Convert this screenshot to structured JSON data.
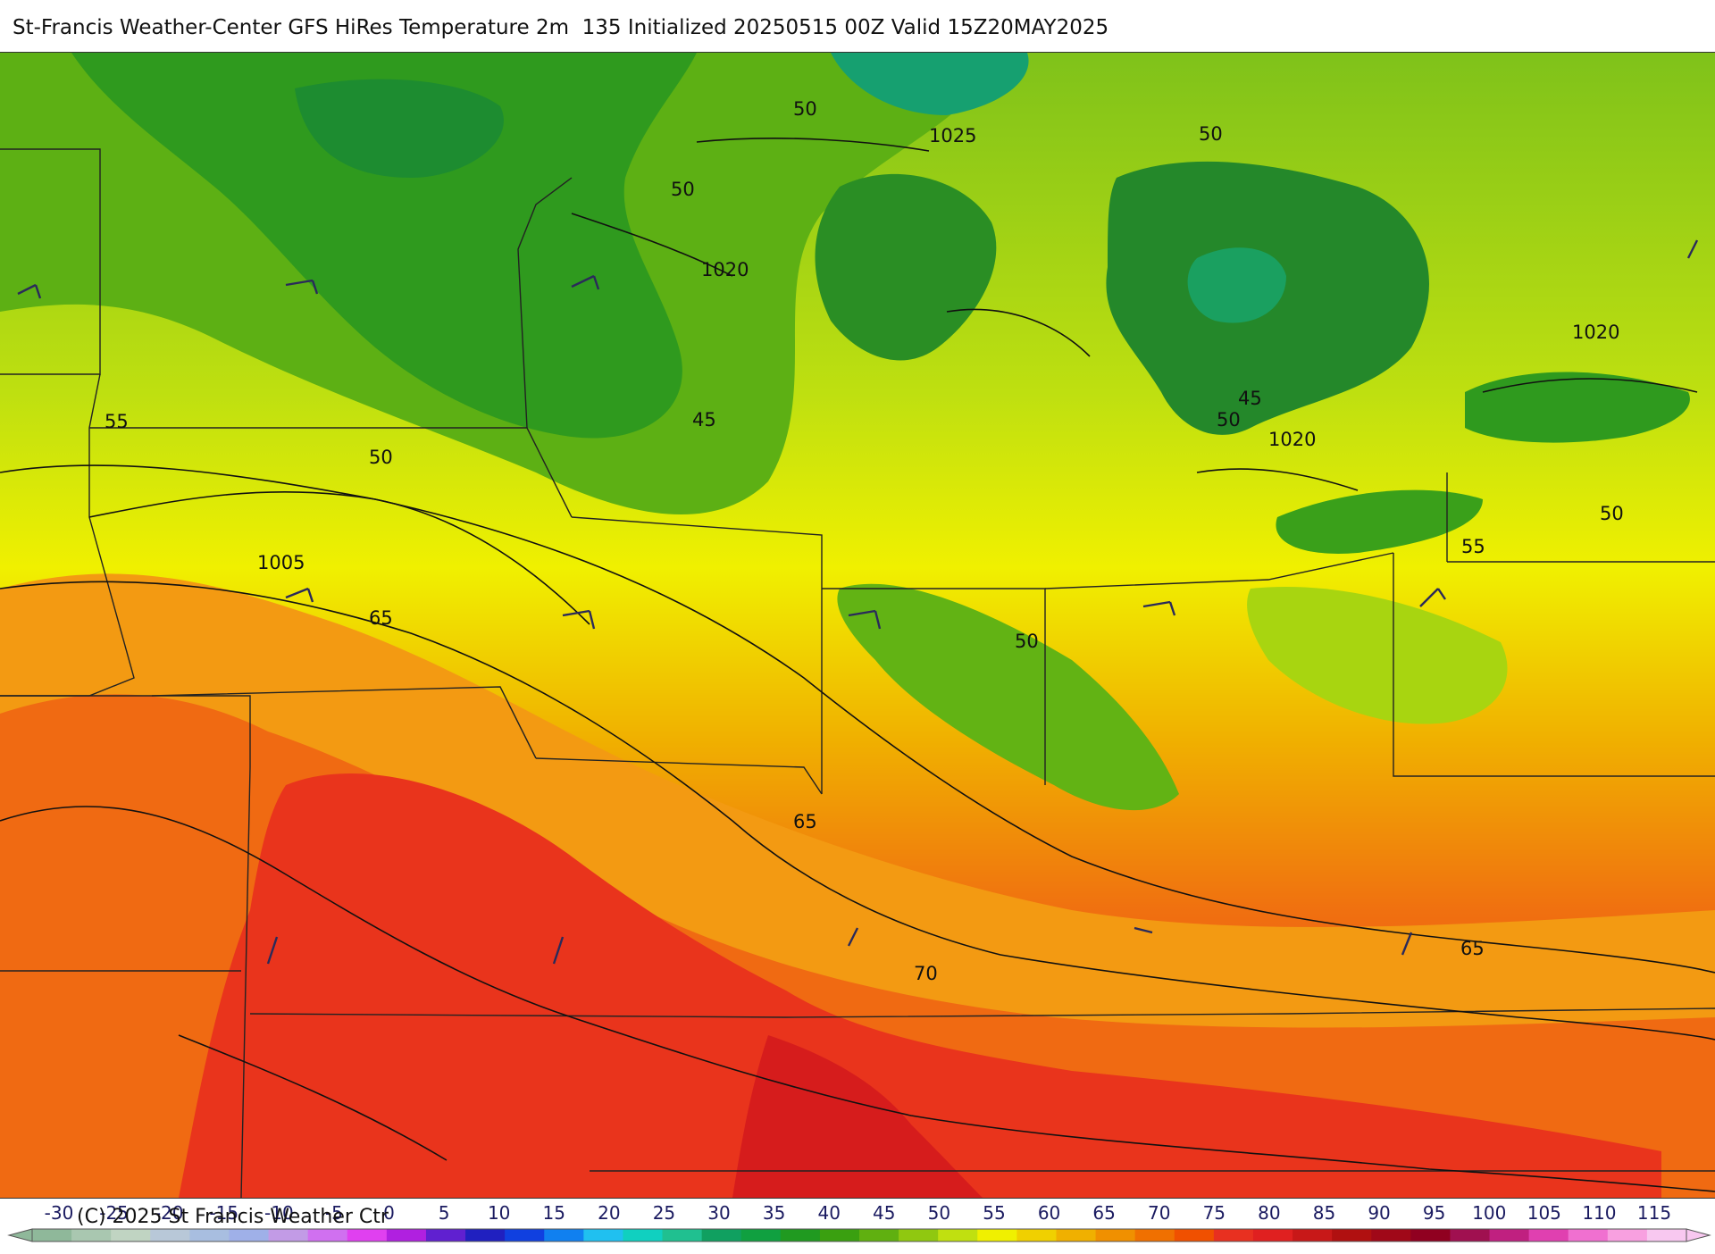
{
  "title": "St-Francis Weather-Center GFS HiRes Temperature 2m  135 Initialized 20250515 00Z Valid 15Z20MAY2025",
  "copyright": "(C) 2025 St Francis Weather Ctr",
  "map": {
    "isobar_labels": [
      "1025",
      "1020",
      "1020",
      "1020",
      "1005"
    ],
    "temperature_labels": [
      "50",
      "50",
      "50",
      "45",
      "45",
      "50",
      "55",
      "50",
      "55",
      "50",
      "65",
      "50",
      "65",
      "70",
      "65"
    ]
  },
  "colorbar": {
    "ticks": [
      "-30",
      "-25",
      "-20",
      "-15",
      "-10",
      "-5",
      "0",
      "5",
      "10",
      "15",
      "20",
      "25",
      "30",
      "35",
      "40",
      "45",
      "50",
      "55",
      "60",
      "65",
      "70",
      "75",
      "80",
      "85",
      "90",
      "95",
      "100",
      "105",
      "110",
      "115"
    ],
    "colors": [
      "#8fb89a",
      "#a9c7b0",
      "#c0d4c2",
      "#b8c8d8",
      "#a8bee0",
      "#9fb0e8",
      "#c29be6",
      "#d070f0",
      "#e040f0",
      "#b020e0",
      "#6020d0",
      "#2020c0",
      "#1040e0",
      "#1080f0",
      "#20c0f0",
      "#10d0c0",
      "#20c090",
      "#10a060",
      "#10a040",
      "#209a20",
      "#3aa010",
      "#60b010",
      "#90c810",
      "#c0e010",
      "#f0f000",
      "#f0d000",
      "#f0b000",
      "#f09000",
      "#f07000",
      "#f05000",
      "#e83020",
      "#e02020",
      "#c81818",
      "#b01010",
      "#a00818",
      "#900020",
      "#a01050",
      "#c02080",
      "#e040b0",
      "#f070d0",
      "#f8a0e0",
      "#f8c8f0"
    ]
  }
}
